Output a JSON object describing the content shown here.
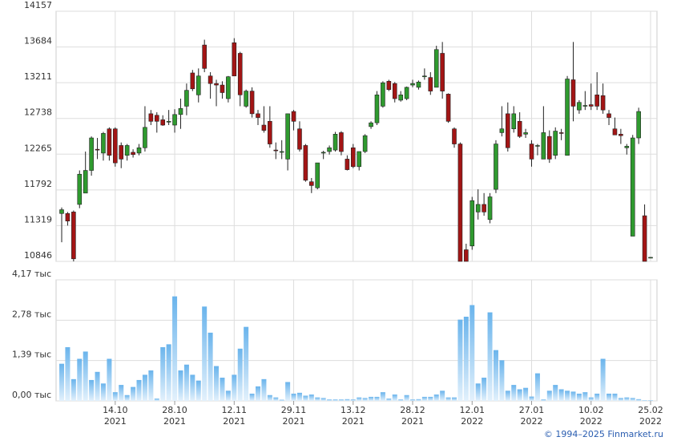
{
  "chart_data": {
    "type": "candlestick",
    "categories": [
      null,
      null,
      null,
      null,
      null,
      null,
      null,
      null,
      null,
      "14.10\n2021",
      null,
      null,
      null,
      null,
      null,
      null,
      null,
      null,
      null,
      "28.10\n2021",
      null,
      null,
      null,
      null,
      null,
      null,
      null,
      null,
      null,
      "12.11\n2021",
      null,
      null,
      null,
      null,
      null,
      null,
      null,
      null,
      null,
      "29.11\n2021",
      null,
      null,
      null,
      null,
      null,
      null,
      null,
      null,
      null,
      "13.12\n2021",
      null,
      null,
      null,
      null,
      null,
      null,
      null,
      null,
      null,
      "28.12\n2021",
      null,
      null,
      null,
      null,
      null,
      null,
      null,
      null,
      null,
      "12.01\n2022",
      null,
      null,
      null,
      null,
      null,
      null,
      null,
      null,
      null,
      "27.01\n2022",
      null,
      null,
      null,
      null,
      null,
      null,
      null,
      null,
      null,
      "10.02\n2022",
      null,
      null,
      null,
      null,
      null,
      null,
      null,
      null,
      null,
      "25.02\n2022"
    ],
    "open": [
      11480,
      11480,
      11500,
      11600,
      11750,
      12050,
      12330,
      12280,
      12600,
      12600,
      12380,
      12250,
      12290,
      12280,
      12350,
      12800,
      12780,
      12720,
      12700,
      12650,
      12790,
      12900,
      13340,
      13050,
      13710,
      13300,
      13200,
      13180,
      13000,
      13740,
      13600,
      12900,
      13100,
      12800,
      12650,
      12700,
      12320,
      12300,
      12200,
      12830,
      12600,
      12380,
      11900,
      11820,
      12280,
      12300,
      12320,
      12550,
      12200,
      12350,
      12100,
      12300,
      12630,
      12680,
      12900,
      13230,
      13200,
      12980,
      13000,
      13180,
      13150,
      13290,
      13280,
      13150,
      13600,
      13060,
      12600,
      12400,
      11000,
      11050,
      11500,
      11600,
      11400,
      11800,
      12550,
      12800,
      12600,
      12700,
      12530,
      12400,
      12370,
      12200,
      12500,
      12250,
      12550,
      12250,
      13250,
      12850,
      12900,
      12920,
      13050,
      13040,
      12800,
      12600,
      12530,
      12350,
      11180,
      12480,
      11450,
      10900
    ],
    "high": [
      11560,
      11500,
      11520,
      12050,
      12300,
      12500,
      12480,
      12560,
      12620,
      12620,
      12420,
      12400,
      12330,
      12400,
      12900,
      12850,
      12820,
      12780,
      12850,
      12860,
      13000,
      13200,
      13380,
      13400,
      13780,
      13350,
      13250,
      13230,
      13300,
      13800,
      13620,
      13120,
      13150,
      12850,
      12900,
      12900,
      12420,
      12450,
      12800,
      12850,
      12700,
      12400,
      11950,
      12150,
      12310,
      12380,
      12560,
      12570,
      12250,
      12400,
      12300,
      12530,
      12700,
      13100,
      13230,
      13250,
      13220,
      13100,
      13160,
      13250,
      13240,
      13400,
      13350,
      13700,
      13750,
      13070,
      12620,
      12420,
      11080,
      11700,
      11800,
      11750,
      11750,
      12450,
      12900,
      12950,
      12900,
      12820,
      12600,
      12450,
      12400,
      12900,
      12580,
      12620,
      12600,
      13300,
      13750,
      12980,
      13100,
      13200,
      13350,
      13200,
      12850,
      12750,
      12600,
      12400,
      12520,
      12880,
      11600,
      10900
    ],
    "low": [
      11100,
      11320,
      10846,
      11550,
      11750,
      11980,
      12200,
      12180,
      12180,
      12100,
      12080,
      12180,
      12220,
      12250,
      12300,
      12650,
      12550,
      12640,
      12650,
      12550,
      12600,
      12780,
      13100,
      12950,
      13350,
      13000,
      12900,
      13000,
      12950,
      13300,
      12900,
      12880,
      12750,
      12650,
      12550,
      12350,
      12200,
      12200,
      12050,
      12580,
      12300,
      11900,
      11750,
      11800,
      12200,
      12260,
      12300,
      12250,
      12050,
      12080,
      12050,
      12280,
      12600,
      12650,
      12880,
      13100,
      12950,
      12960,
      12980,
      13150,
      13120,
      13250,
      13050,
      13150,
      13000,
      12680,
      12350,
      10846,
      10846,
      11000,
      11400,
      11450,
      11350,
      11750,
      12500,
      12300,
      12550,
      12480,
      12480,
      12100,
      12250,
      12200,
      12150,
      12200,
      12450,
      12250,
      12700,
      12800,
      12850,
      12850,
      12850,
      12800,
      12650,
      12550,
      12400,
      12260,
      11180,
      12400,
      10846,
      10890
    ],
    "close": [
      11530,
      11380,
      10880,
      12000,
      12050,
      12480,
      12320,
      12540,
      12250,
      12150,
      12200,
      12380,
      12260,
      12350,
      12620,
      12700,
      12700,
      12650,
      12700,
      12790,
      12870,
      13110,
      13130,
      13300,
      13400,
      13200,
      13180,
      13080,
      13290,
      13300,
      13050,
      13100,
      12800,
      12750,
      12580,
      12400,
      12310,
      12300,
      12800,
      12700,
      12330,
      11920,
      11850,
      12150,
      12290,
      12350,
      12530,
      12300,
      12060,
      12100,
      12300,
      12510,
      12680,
      13050,
      13210,
      13120,
      13000,
      13050,
      13150,
      13200,
      13220,
      13300,
      13100,
      13650,
      13100,
      12700,
      12400,
      10846,
      10846,
      11650,
      11600,
      11500,
      11700,
      12400,
      12600,
      12350,
      12800,
      12500,
      12550,
      12200,
      12380,
      12550,
      12200,
      12570,
      12540,
      13260,
      12900,
      12950,
      12910,
      12900,
      12900,
      12850,
      12750,
      12520,
      12510,
      12370,
      12480,
      12830,
      10846,
      10900
    ],
    "up_color": "#2f9a2f",
    "down_color": "#a31515",
    "ylim": [
      10846,
      14157
    ],
    "yticks": [
      10846,
      11319,
      11792,
      12265,
      12738,
      13211,
      13684,
      14157
    ],
    "volume": [
      1.28,
      1.85,
      0.75,
      1.45,
      1.7,
      0.72,
      1.0,
      0.6,
      1.45,
      0.3,
      0.55,
      0.2,
      0.48,
      0.72,
      0.9,
      1.05,
      0.08,
      1.85,
      1.95,
      3.6,
      1.05,
      1.25,
      0.9,
      0.7,
      3.25,
      2.35,
      1.2,
      0.8,
      0.35,
      0.9,
      1.8,
      2.55,
      0.25,
      0.5,
      0.75,
      0.2,
      0.12,
      0.04,
      0.65,
      0.25,
      0.28,
      0.18,
      0.22,
      0.12,
      0.1,
      0.05,
      0.05,
      0.05,
      0.06,
      0.05,
      0.12,
      0.1,
      0.14,
      0.14,
      0.3,
      0.08,
      0.22,
      0.05,
      0.2,
      0.05,
      0.06,
      0.14,
      0.14,
      0.22,
      0.35,
      0.12,
      0.12,
      2.8,
      2.9,
      3.3,
      0.6,
      0.8,
      3.05,
      1.75,
      1.4,
      0.35,
      0.55,
      0.4,
      0.45,
      0.15,
      0.95,
      0.05,
      0.35,
      0.55,
      0.4,
      0.35,
      0.32,
      0.25,
      0.3,
      0.12,
      0.25,
      1.45,
      0.25,
      0.25,
      0.1,
      0.12,
      0.1,
      0.06,
      0.02,
      0.02
    ],
    "volume_color": "#6ab4ec",
    "y2lim": [
      0,
      4.17
    ],
    "y2ticks": [
      {
        "value": 0,
        "label": "0,00 тыс"
      },
      {
        "value": 1.39,
        "label": "1,39 тыс"
      },
      {
        "value": 2.78,
        "label": "2,78 тыс"
      },
      {
        "value": 4.17,
        "label": "4,17 тыс"
      }
    ],
    "grid": true
  },
  "footer": "© 1994–2025 Finmarket.ru"
}
